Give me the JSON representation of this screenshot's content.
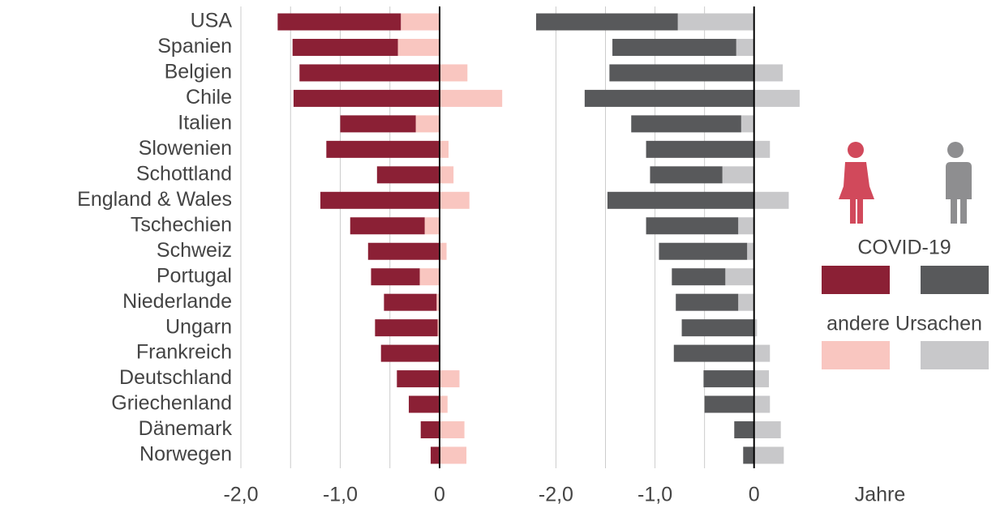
{
  "chart_data": [
    {
      "type": "bar",
      "orientation": "horizontal",
      "stacked": true,
      "categories": [
        "USA",
        "Spanien",
        "Belgien",
        "Chile",
        "Italien",
        "Slowenien",
        "Schottland",
        "England & Wales",
        "Tschechien",
        "Schweiz",
        "Portugal",
        "Niederlande",
        "Ungarn",
        "Frankreich",
        "Deutschland",
        "Griechenland",
        "Dänemark",
        "Norwegen"
      ],
      "series": [
        {
          "name": "COVID-19",
          "color": "#8b2035",
          "values": [
            -1.24,
            -1.06,
            -1.41,
            -1.47,
            -0.76,
            -1.14,
            -0.63,
            -1.2,
            -0.75,
            -0.72,
            -0.49,
            -0.53,
            -0.63,
            -0.59,
            -0.43,
            -0.31,
            -0.19,
            -0.09
          ]
        },
        {
          "name": "andere Ursachen",
          "color": "#f9c6c0",
          "values": [
            -0.39,
            -0.42,
            0.28,
            0.63,
            -0.24,
            0.09,
            0.14,
            0.3,
            -0.15,
            0.07,
            -0.2,
            -0.03,
            -0.02,
            0,
            0.2,
            0.08,
            0.25,
            0.27
          ]
        }
      ],
      "xlim": [
        -2.0,
        0.8
      ],
      "xticks": [
        {
          "value": -2,
          "label": "-2,0"
        },
        {
          "value": -1,
          "label": "-1,0"
        },
        0
      ],
      "minor_xticks": [
        -1.5,
        -0.5
      ],
      "grid": true
    },
    {
      "type": "bar",
      "orientation": "horizontal",
      "stacked": true,
      "series": [
        {
          "color": "#58595b",
          "values": [
            -1.43,
            -1.25,
            -1.46,
            -1.71,
            -1.11,
            -1.09,
            -0.73,
            -1.48,
            -0.93,
            -0.89,
            -0.54,
            -0.63,
            -0.73,
            -0.81,
            -0.51,
            -0.5,
            -0.2,
            -0.11
          ]
        },
        {
          "color": "#c8c8ca",
          "values": [
            -0.77,
            -0.18,
            0.29,
            0.46,
            -0.13,
            0.16,
            -0.32,
            0.35,
            -0.16,
            -0.07,
            -0.29,
            -0.16,
            0.03,
            0.16,
            0.15,
            0.16,
            0.27,
            0.3
          ]
        }
      ],
      "xlim": [
        -2.2,
        0.6
      ],
      "xticks": [
        {
          "value": -2,
          "label": "-2,0"
        },
        {
          "value": -1,
          "label": "-1,0"
        },
        0
      ],
      "minor_xticks": [
        -1.5,
        -0.5
      ],
      "grid": true,
      "xlabel": "Jahre"
    }
  ]
}
